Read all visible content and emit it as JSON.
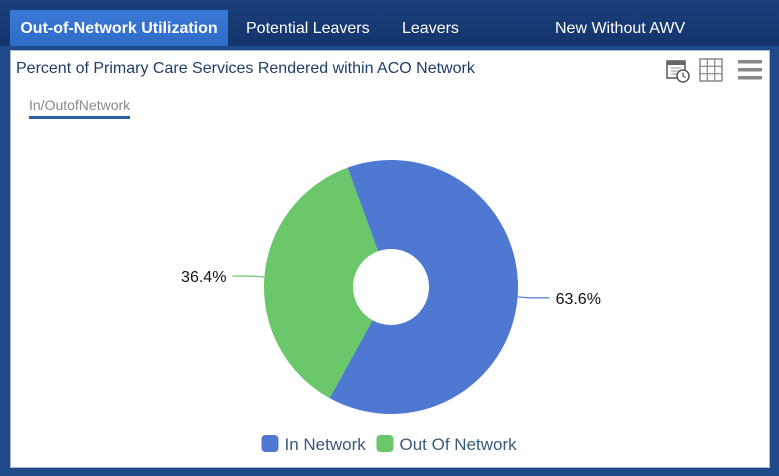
{
  "tabs": [
    {
      "label": "Out-of-Network Utilization",
      "active": true
    },
    {
      "label": "Potential Leavers",
      "active": false
    },
    {
      "label": "Leavers",
      "active": false
    },
    {
      "label": "New Without AWV",
      "active": false
    }
  ],
  "panel": {
    "title": "Percent of Primary Care Services Rendered within ACO Network",
    "subtab": "In/OutofNetwork",
    "icons": [
      "calendar-clock-icon",
      "grid-icon",
      "menu-icon"
    ]
  },
  "colors": {
    "in_network": "#4f78d3",
    "out_network": "#6ac76a",
    "tab_bar": "#13356c",
    "tab_active": "#2e6cc8"
  },
  "chart_data": {
    "type": "pie",
    "donut": true,
    "title": "",
    "legend_position": "bottom-center",
    "slices": [
      {
        "label": "In Network",
        "value": 63.6,
        "value_label": "63.6%",
        "color": "#4f78d3"
      },
      {
        "label": "Out Of Network",
        "value": 36.4,
        "value_label": "36.4%",
        "color": "#6ac76a"
      }
    ]
  }
}
